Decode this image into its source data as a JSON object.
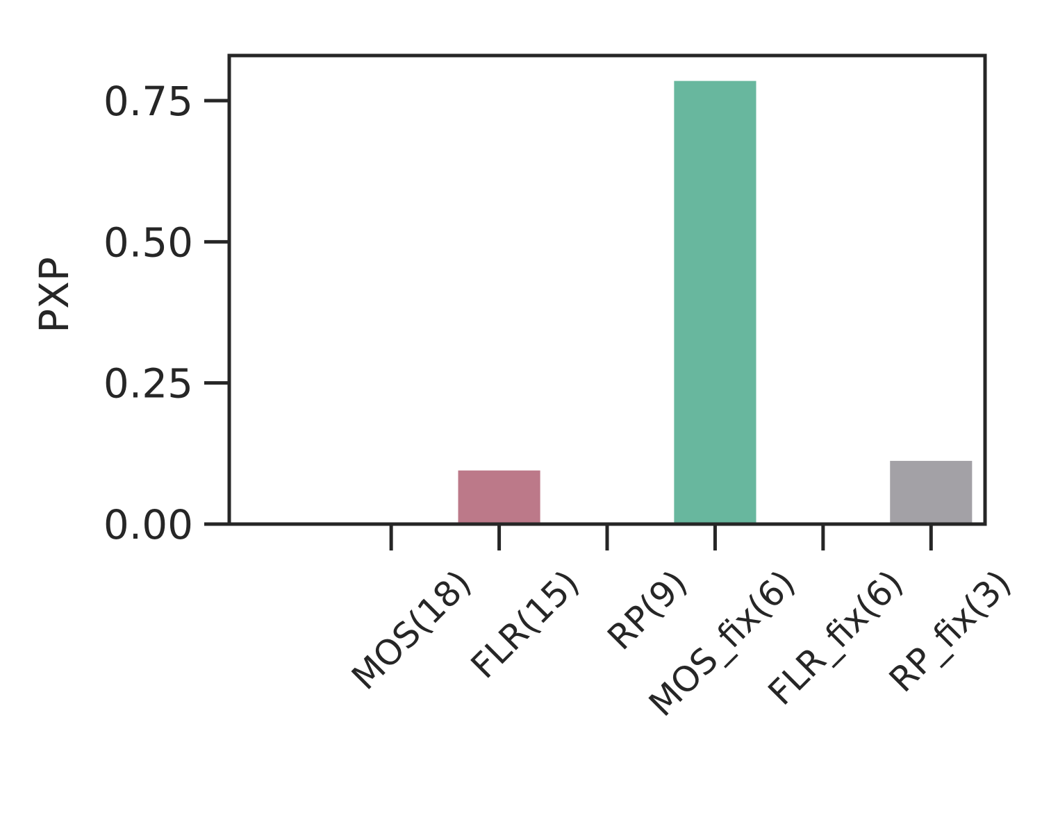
{
  "chart_data": {
    "type": "bar",
    "title": "",
    "xlabel": "",
    "ylabel": "PXP",
    "categories": [
      "MOS(18)",
      "FLR(15)",
      "RP(9)",
      "MOS_fix(6)",
      "FLR_fix(6)",
      "RP_fix(3)"
    ],
    "values": [
      0.0,
      0.095,
      0.0,
      0.785,
      0.0,
      0.112
    ],
    "colors": [
      "#4c72b0",
      "#bc7989",
      "#8172b2",
      "#68b79e",
      "#c8a8c0",
      "#a3a1a6"
    ],
    "ylim": [
      0,
      0.83
    ],
    "yticks": [
      0.0,
      0.25,
      0.5,
      0.75
    ],
    "ytick_labels": [
      "0.00",
      "0.25",
      "0.50",
      "0.75"
    ],
    "grid": false,
    "legend": "none"
  }
}
